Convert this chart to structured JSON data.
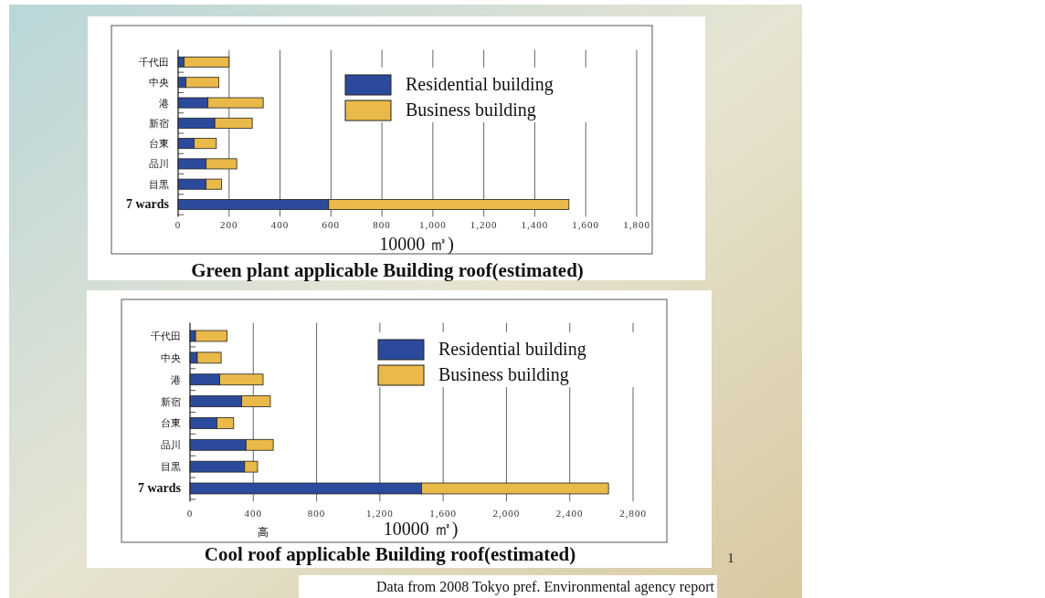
{
  "chart_data": [
    {
      "type": "bar",
      "orientation": "horizontal",
      "stacked": true,
      "title": "Green plant applicable Building roof(estimated)",
      "xlabel": "10000 ㎡)",
      "categories": [
        "千代田",
        "中央",
        "港",
        "新宿",
        "台東",
        "品川",
        "目黒",
        "7 wards"
      ],
      "series": [
        {
          "name": "Residential building",
          "color": "#2c4a9c",
          "values": [
            23,
            31,
            117,
            144,
            63,
            110,
            110,
            591
          ]
        },
        {
          "name": "Business building",
          "color": "#e9b949",
          "values": [
            177,
            129,
            217,
            147,
            87,
            120,
            60,
            943
          ]
        }
      ],
      "xlim": [
        0,
        1800
      ],
      "xticks": [
        0,
        200,
        400,
        600,
        800,
        {
          "value": 1000,
          "label": "1,000"
        },
        {
          "value": 1200,
          "label": "1,200"
        },
        {
          "value": 1400,
          "label": "1,400"
        },
        {
          "value": 1600,
          "label": "1,600"
        },
        {
          "value": 1800,
          "label": "1,800"
        }
      ],
      "grid": "x",
      "legend": "top right"
    },
    {
      "type": "bar",
      "orientation": "horizontal",
      "stacked": true,
      "title": "Cool roof applicable Building roof(estimated)",
      "xlabel": "10000 ㎡)",
      "categories": [
        "千代田",
        "中央",
        "港",
        "新宿",
        "台東",
        "品川",
        "目黒",
        "7 wards"
      ],
      "series": [
        {
          "name": "Residential building",
          "color": "#2c4a9c",
          "values": [
            35,
            46,
            188,
            327,
            170,
            354,
            345,
            1463
          ]
        },
        {
          "name": "Business building",
          "color": "#e9b949",
          "values": [
            199,
            151,
            274,
            181,
            106,
            172,
            82,
            1182
          ]
        }
      ],
      "xlim": [
        0,
        2800
      ],
      "xticks": [
        0,
        400,
        800,
        {
          "value": 1200,
          "label": "1,200"
        },
        {
          "value": 1600,
          "label": "1,600"
        },
        {
          "value": 2000,
          "label": "2,000"
        },
        {
          "value": 2400,
          "label": "2,400"
        },
        {
          "value": 2800,
          "label": "2,800"
        }
      ],
      "grid": "x",
      "legend": "top right",
      "annotations": [
        "高",
        "Data from 2008 Tokyo pref. Environmental agency report",
        "1"
      ]
    }
  ]
}
